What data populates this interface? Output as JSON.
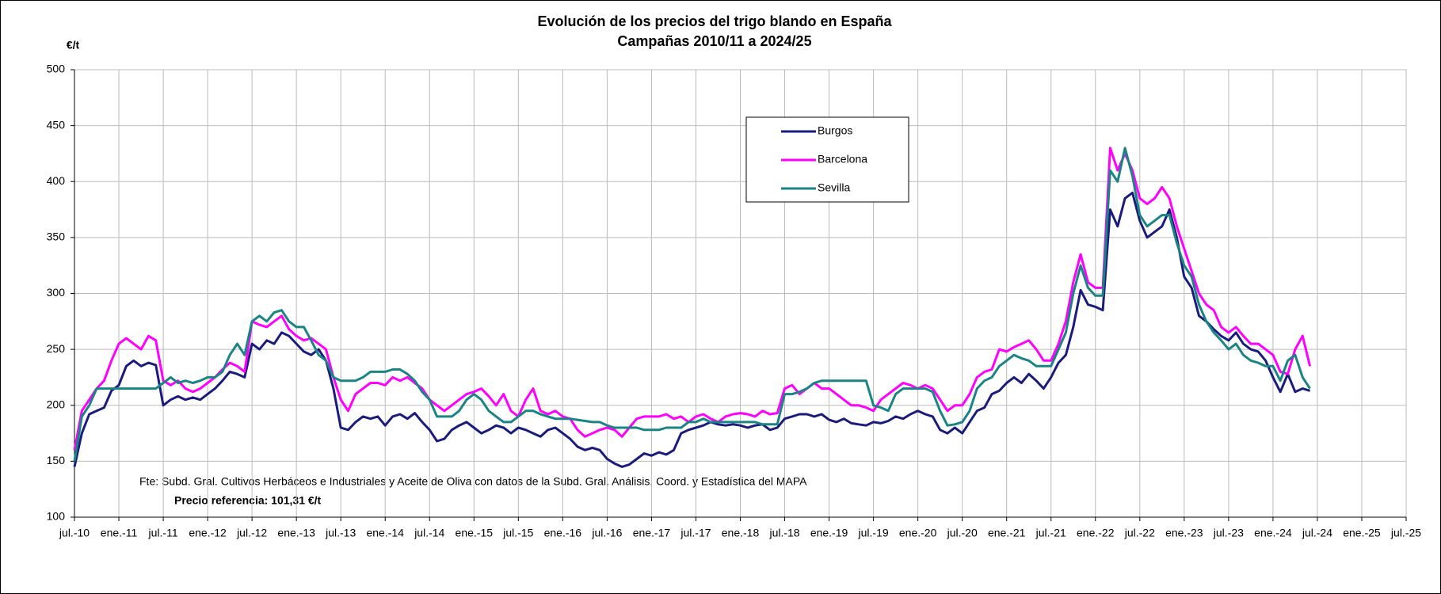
{
  "chart_data": {
    "type": "line",
    "title": "Evolución de los precios del trigo blando en España",
    "subtitle": "Campañas 2010/11 a 2024/25",
    "y_label": "€/t",
    "source": "Fte: Subd. Gral. Cultivos Herbáceos e Industriales y Aceite de Oliva con datos de la Subd. Gral. Análisis, Coord. y Estadística del MAPA",
    "note": "Precio referencia: 101,31 €/t",
    "legend": "top-center",
    "grid": true,
    "ylim": [
      100,
      500
    ],
    "yticks": [
      100,
      150,
      200,
      250,
      300,
      350,
      400,
      450,
      500
    ],
    "xlim": [
      "2010-07",
      "2025-07"
    ],
    "xticks": [
      {
        "value": "2010-07",
        "label": "jul.-10"
      },
      {
        "value": "2011-01",
        "label": "ene.-11"
      },
      {
        "value": "2011-07",
        "label": "jul.-11"
      },
      {
        "value": "2012-01",
        "label": "ene.-12"
      },
      {
        "value": "2012-07",
        "label": "jul.-12"
      },
      {
        "value": "2013-01",
        "label": "ene.-13"
      },
      {
        "value": "2013-07",
        "label": "jul.-13"
      },
      {
        "value": "2014-01",
        "label": "ene.-14"
      },
      {
        "value": "2014-07",
        "label": "jul.-14"
      },
      {
        "value": "2015-01",
        "label": "ene.-15"
      },
      {
        "value": "2015-07",
        "label": "jul.-15"
      },
      {
        "value": "2016-01",
        "label": "ene.-16"
      },
      {
        "value": "2016-07",
        "label": "jul.-16"
      },
      {
        "value": "2017-01",
        "label": "ene.-17"
      },
      {
        "value": "2017-07",
        "label": "jul.-17"
      },
      {
        "value": "2018-01",
        "label": "ene.-18"
      },
      {
        "value": "2018-07",
        "label": "jul.-18"
      },
      {
        "value": "2019-01",
        "label": "ene.-19"
      },
      {
        "value": "2019-07",
        "label": "jul.-19"
      },
      {
        "value": "2020-01",
        "label": "ene.-20"
      },
      {
        "value": "2020-07",
        "label": "jul.-20"
      },
      {
        "value": "2021-01",
        "label": "ene.-21"
      },
      {
        "value": "2021-07",
        "label": "jul.-21"
      },
      {
        "value": "2022-01",
        "label": "ene.-22"
      },
      {
        "value": "2022-07",
        "label": "jul.-22"
      },
      {
        "value": "2023-01",
        "label": "ene.-23"
      },
      {
        "value": "2023-07",
        "label": "jul.-23"
      },
      {
        "value": "2024-01",
        "label": "ene.-24"
      },
      {
        "value": "2024-07",
        "label": "jul.-24"
      },
      {
        "value": "2025-01",
        "label": "ene.-25"
      },
      {
        "value": "2025-07",
        "label": "jul.-25"
      }
    ],
    "x": [
      "2010-07",
      "2010-08",
      "2010-09",
      "2010-10",
      "2010-11",
      "2010-12",
      "2011-01",
      "2011-02",
      "2011-03",
      "2011-04",
      "2011-05",
      "2011-06",
      "2011-07",
      "2011-08",
      "2011-09",
      "2011-10",
      "2011-11",
      "2011-12",
      "2012-01",
      "2012-02",
      "2012-03",
      "2012-04",
      "2012-05",
      "2012-06",
      "2012-07",
      "2012-08",
      "2012-09",
      "2012-10",
      "2012-11",
      "2012-12",
      "2013-01",
      "2013-02",
      "2013-03",
      "2013-04",
      "2013-05",
      "2013-06",
      "2013-07",
      "2013-08",
      "2013-09",
      "2013-10",
      "2013-11",
      "2013-12",
      "2014-01",
      "2014-02",
      "2014-03",
      "2014-04",
      "2014-05",
      "2014-06",
      "2014-07",
      "2014-08",
      "2014-09",
      "2014-10",
      "2014-11",
      "2014-12",
      "2015-01",
      "2015-02",
      "2015-03",
      "2015-04",
      "2015-05",
      "2015-06",
      "2015-07",
      "2015-08",
      "2015-09",
      "2015-10",
      "2015-11",
      "2015-12",
      "2016-01",
      "2016-02",
      "2016-03",
      "2016-04",
      "2016-05",
      "2016-06",
      "2016-07",
      "2016-08",
      "2016-09",
      "2016-10",
      "2016-11",
      "2016-12",
      "2017-01",
      "2017-02",
      "2017-03",
      "2017-04",
      "2017-05",
      "2017-06",
      "2017-07",
      "2017-08",
      "2017-09",
      "2017-10",
      "2017-11",
      "2017-12",
      "2018-01",
      "2018-02",
      "2018-03",
      "2018-04",
      "2018-05",
      "2018-06",
      "2018-07",
      "2018-08",
      "2018-09",
      "2018-10",
      "2018-11",
      "2018-12",
      "2019-01",
      "2019-02",
      "2019-03",
      "2019-04",
      "2019-05",
      "2019-06",
      "2019-07",
      "2019-08",
      "2019-09",
      "2019-10",
      "2019-11",
      "2019-12",
      "2020-01",
      "2020-02",
      "2020-03",
      "2020-04",
      "2020-05",
      "2020-06",
      "2020-07",
      "2020-08",
      "2020-09",
      "2020-10",
      "2020-11",
      "2020-12",
      "2021-01",
      "2021-02",
      "2021-03",
      "2021-04",
      "2021-05",
      "2021-06",
      "2021-07",
      "2021-08",
      "2021-09",
      "2021-10",
      "2021-11",
      "2021-12",
      "2022-01",
      "2022-02",
      "2022-03",
      "2022-04",
      "2022-05",
      "2022-06",
      "2022-07",
      "2022-08",
      "2022-09",
      "2022-10",
      "2022-11",
      "2022-12",
      "2023-01",
      "2023-02",
      "2023-03",
      "2023-04",
      "2023-05",
      "2023-06",
      "2023-07",
      "2023-08",
      "2023-09",
      "2023-10",
      "2023-11",
      "2023-12",
      "2024-01",
      "2024-02",
      "2024-03",
      "2024-04",
      "2024-05",
      "2024-06"
    ],
    "series": [
      {
        "name": "Burgos",
        "color": "#1b1b7d",
        "values": [
          145,
          175,
          192,
          195,
          198,
          213,
          218,
          235,
          240,
          235,
          238,
          236,
          200,
          205,
          208,
          205,
          207,
          205,
          210,
          215,
          222,
          230,
          228,
          225,
          255,
          250,
          258,
          255,
          265,
          262,
          255,
          248,
          245,
          250,
          240,
          215,
          180,
          178,
          185,
          190,
          188,
          190,
          182,
          190,
          192,
          188,
          193,
          185,
          178,
          168,
          170,
          178,
          182,
          185,
          180,
          175,
          178,
          182,
          180,
          175,
          180,
          178,
          175,
          172,
          178,
          180,
          175,
          170,
          163,
          160,
          162,
          160,
          152,
          148,
          145,
          147,
          152,
          157,
          155,
          158,
          156,
          160,
          175,
          178,
          180,
          182,
          185,
          183,
          182,
          183,
          182,
          180,
          182,
          183,
          178,
          180,
          188,
          190,
          192,
          192,
          190,
          192,
          187,
          185,
          188,
          184,
          183,
          182,
          185,
          184,
          186,
          190,
          188,
          192,
          195,
          192,
          190,
          178,
          175,
          180,
          175,
          185,
          195,
          198,
          210,
          213,
          220,
          225,
          220,
          228,
          222,
          215,
          225,
          238,
          245,
          270,
          303,
          290,
          288,
          285,
          375,
          360,
          385,
          390,
          365,
          350,
          355,
          360,
          375,
          350,
          315,
          305,
          280,
          275,
          268,
          262,
          258,
          265,
          255,
          250,
          248,
          240,
          225,
          212,
          228,
          212,
          215,
          213
        ]
      },
      {
        "name": "Barcelona",
        "color": "#ff00ff",
        "values": [
          160,
          195,
          205,
          215,
          222,
          240,
          255,
          260,
          255,
          250,
          262,
          258,
          222,
          218,
          222,
          215,
          212,
          215,
          220,
          225,
          232,
          238,
          235,
          230,
          275,
          272,
          270,
          275,
          280,
          268,
          262,
          258,
          260,
          255,
          250,
          225,
          205,
          195,
          210,
          215,
          220,
          220,
          218,
          225,
          222,
          225,
          220,
          215,
          205,
          200,
          195,
          200,
          205,
          210,
          212,
          215,
          208,
          200,
          210,
          195,
          190,
          205,
          215,
          195,
          192,
          195,
          190,
          188,
          178,
          172,
          175,
          178,
          180,
          178,
          172,
          180,
          188,
          190,
          190,
          190,
          192,
          188,
          190,
          185,
          190,
          192,
          188,
          185,
          190,
          192,
          193,
          192,
          190,
          195,
          192,
          193,
          215,
          218,
          210,
          215,
          220,
          215,
          215,
          210,
          205,
          200,
          200,
          198,
          195,
          205,
          210,
          215,
          220,
          218,
          215,
          218,
          215,
          205,
          195,
          200,
          200,
          210,
          225,
          230,
          232,
          250,
          248,
          252,
          255,
          258,
          250,
          240,
          240,
          255,
          275,
          310,
          335,
          310,
          305,
          305,
          430,
          410,
          425,
          410,
          385,
          380,
          385,
          395,
          385,
          360,
          340,
          320,
          300,
          290,
          285,
          270,
          265,
          270,
          262,
          255,
          255,
          250,
          245,
          230,
          228,
          250,
          262,
          235
        ]
      },
      {
        "name": "Sevilla",
        "color": "#1a8484",
        "values": [
          150,
          190,
          200,
          215,
          215,
          215,
          215,
          215,
          215,
          215,
          215,
          215,
          220,
          225,
          220,
          222,
          220,
          222,
          225,
          225,
          230,
          245,
          255,
          245,
          275,
          280,
          275,
          283,
          285,
          275,
          270,
          270,
          258,
          245,
          240,
          225,
          222,
          222,
          222,
          225,
          230,
          230,
          230,
          232,
          232,
          228,
          222,
          212,
          205,
          190,
          190,
          190,
          195,
          205,
          210,
          205,
          195,
          190,
          185,
          185,
          190,
          195,
          195,
          192,
          190,
          188,
          188,
          188,
          187,
          186,
          185,
          185,
          182,
          180,
          180,
          180,
          180,
          178,
          178,
          178,
          180,
          180,
          180,
          185,
          185,
          188,
          185,
          185,
          185,
          185,
          185,
          185,
          185,
          183,
          183,
          183,
          210,
          210,
          212,
          215,
          220,
          222,
          222,
          222,
          222,
          222,
          222,
          222,
          200,
          198,
          195,
          210,
          215,
          215,
          215,
          215,
          212,
          195,
          182,
          183,
          185,
          195,
          215,
          222,
          225,
          235,
          240,
          245,
          242,
          240,
          235,
          235,
          235,
          250,
          265,
          300,
          325,
          305,
          298,
          298,
          410,
          400,
          430,
          405,
          370,
          360,
          365,
          370,
          370,
          345,
          325,
          315,
          290,
          275,
          265,
          258,
          250,
          255,
          245,
          240,
          238,
          235,
          235,
          222,
          240,
          245,
          225,
          215
        ]
      }
    ]
  }
}
